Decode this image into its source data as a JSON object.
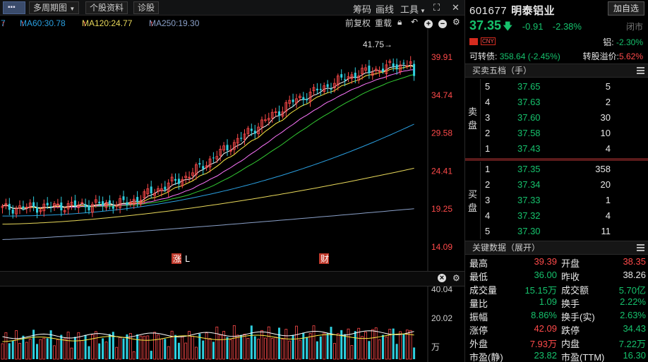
{
  "toolbar": {
    "menu_icon": "more-icon",
    "period_label": "多周期图",
    "profile_label": "个股资料",
    "diagnose_label": "诊股",
    "chips_label": "筹码",
    "draw_label": "画线",
    "tools_label": "工具",
    "expand_icon": "expand-icon",
    "close_icon": "close-icon"
  },
  "ma": {
    "partial": "7",
    "ma60": "MA60:30.78",
    "ma120": "MA120:24.77",
    "ma250": "MA250:19.30",
    "adjust_label": "前复权",
    "reload_label": "重载"
  },
  "colors": {
    "up": "#ff4a4a",
    "down": "#16c16c",
    "ma5": "#ffffff",
    "ma10": "#ffee44",
    "ma20": "#ff77ff",
    "ma30": "#33cc33",
    "ma60": "#2a9fe0",
    "ma120": "#e8d85a",
    "ma250": "#8aa0c8"
  },
  "price_axis": [
    "39.91",
    "34.74",
    "29.58",
    "24.41",
    "19.25",
    "14.09"
  ],
  "vol_axis": [
    "40.04",
    "20.02",
    "万"
  ],
  "max_marker": "41.75→",
  "event_markers": [
    "涨",
    "L",
    "财"
  ],
  "stock": {
    "code": "601677",
    "name": "明泰铝业",
    "add_fav": "加自选",
    "price": "37.35",
    "change": "-0.91",
    "change_pct": "-2.38%",
    "status": "闭市",
    "currency": "CNY",
    "alum_label": "铝:",
    "alum_pct": "-2.30%",
    "conv_label": "可转债:",
    "conv_value": "358.64",
    "conv_pct": "(-2.45%)",
    "premium_label": "转股溢价:",
    "premium_value": "5.62%"
  },
  "orderbook": {
    "title": "买卖五档（手）",
    "sell_label": [
      "卖",
      "盘"
    ],
    "buy_label": [
      "买",
      "盘"
    ],
    "sell": [
      {
        "lvl": "5",
        "price": "37.65",
        "vol": "5"
      },
      {
        "lvl": "4",
        "price": "37.63",
        "vol": "2"
      },
      {
        "lvl": "3",
        "price": "37.60",
        "vol": "30"
      },
      {
        "lvl": "2",
        "price": "37.58",
        "vol": "10"
      },
      {
        "lvl": "1",
        "price": "37.43",
        "vol": "4"
      }
    ],
    "buy": [
      {
        "lvl": "1",
        "price": "37.35",
        "vol": "358"
      },
      {
        "lvl": "2",
        "price": "37.34",
        "vol": "20"
      },
      {
        "lvl": "3",
        "price": "37.33",
        "vol": "1"
      },
      {
        "lvl": "4",
        "price": "37.32",
        "vol": "4"
      },
      {
        "lvl": "5",
        "price": "37.30",
        "vol": "11"
      }
    ]
  },
  "keydata": {
    "title": "关键数据（展开）",
    "rows": [
      {
        "l1": "最高",
        "v1": "39.39",
        "c1": "red",
        "l2": "开盘",
        "v2": "38.35",
        "c2": "red"
      },
      {
        "l1": "最低",
        "v1": "36.00",
        "c1": "green",
        "l2": "昨收",
        "v2": "38.26",
        "c2": "white"
      },
      {
        "l1": "成交量",
        "v1": "15.15万",
        "c1": "green",
        "l2": "成交额",
        "v2": "5.70亿",
        "c2": "green"
      },
      {
        "l1": "量比",
        "v1": "1.09",
        "c1": "green",
        "l2": "换手",
        "v2": "2.22%",
        "c2": "green"
      },
      {
        "l1": "振幅",
        "v1": "8.86%",
        "c1": "green",
        "l2": "换手(实)",
        "v2": "2.63%",
        "c2": "green"
      },
      {
        "l1": "涨停",
        "v1": "42.09",
        "c1": "red",
        "l2": "跌停",
        "v2": "34.43",
        "c2": "green"
      },
      {
        "l1": "外盘",
        "v1": "7.93万",
        "c1": "red",
        "l2": "内盘",
        "v2": "7.22万",
        "c2": "green"
      },
      {
        "l1": "市盈(静)",
        "v1": "23.82",
        "c1": "green",
        "l2": "市盈(TTM)",
        "v2": "16.30",
        "c2": "green"
      }
    ]
  }
}
